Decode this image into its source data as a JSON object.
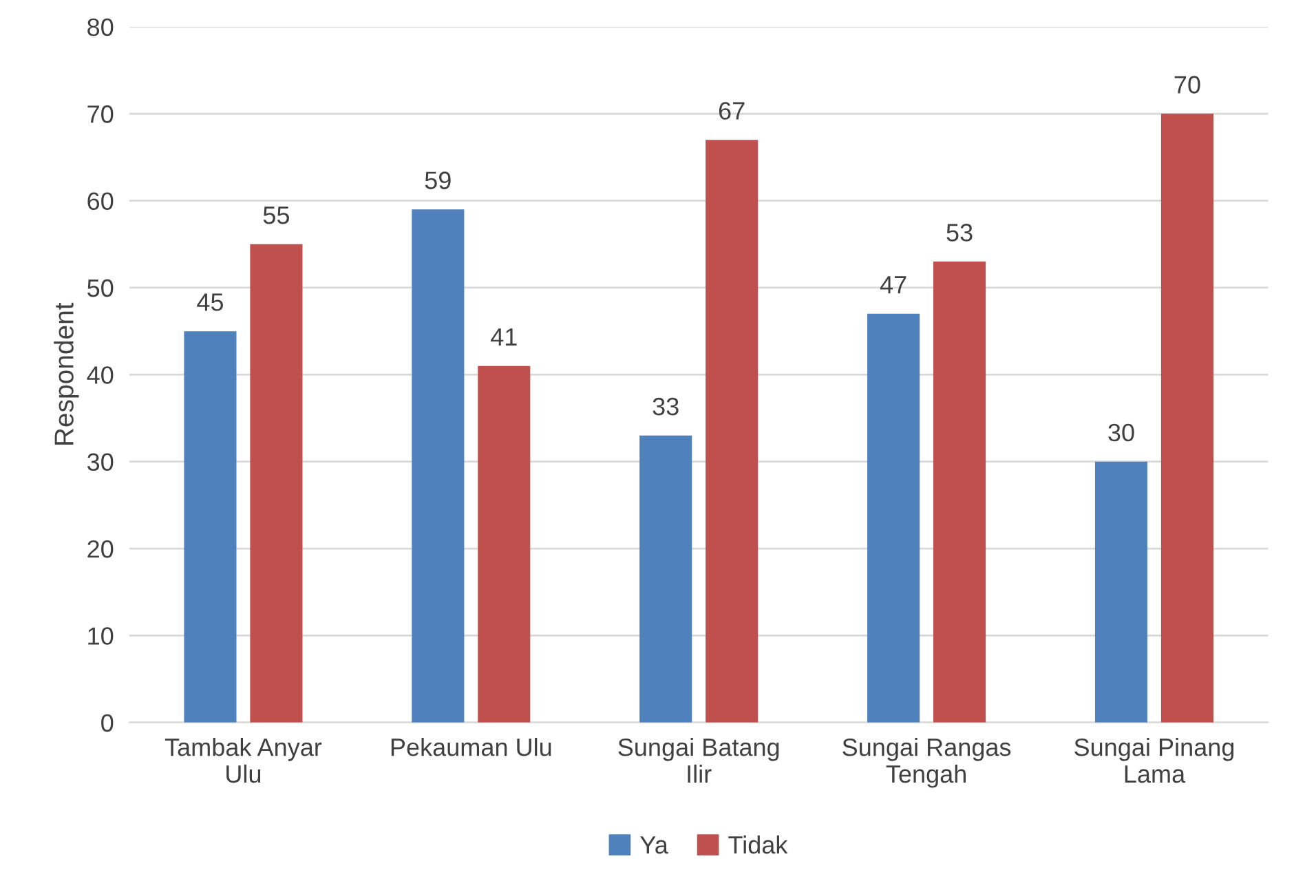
{
  "chart_data": {
    "type": "bar",
    "ylabel": "Respondent",
    "categories": [
      "Tambak Anyar Ulu",
      "Pekauman Ulu",
      "Sungai Batang Ilir",
      "Sungai Rangas Tengah",
      "Sungai Pinang Lama"
    ],
    "series": [
      {
        "name": "Ya",
        "color": "#4f81bd",
        "values": [
          45,
          59,
          33,
          47,
          30
        ]
      },
      {
        "name": "Tidak",
        "color": "#c0504d",
        "values": [
          55,
          41,
          67,
          53,
          70
        ]
      }
    ],
    "ylim": [
      0,
      80
    ],
    "yticks": [
      0,
      10,
      20,
      30,
      40,
      50,
      60,
      70,
      80
    ],
    "grid": "y",
    "legend": "bottom",
    "data_labels": true
  }
}
